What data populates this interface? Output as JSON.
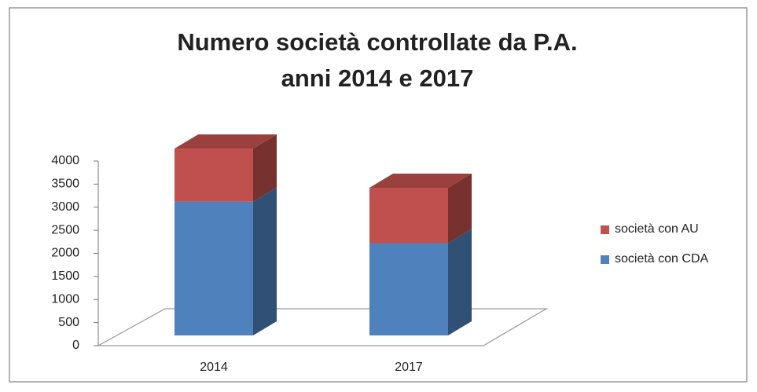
{
  "chart_data": {
    "type": "bar3d_stacked",
    "title": [
      "Numero società controllate da P.A.",
      "anni 2014 e 2017"
    ],
    "categories": [
      "2014",
      "2017"
    ],
    "series": [
      {
        "name": "società con CDA",
        "color": "#4f81bd",
        "values": [
          2900,
          2000
        ]
      },
      {
        "name": "società con AU",
        "color": "#c0504d",
        "values": [
          1150,
          1200
        ]
      }
    ],
    "ylim": [
      0,
      4000
    ],
    "yticks": [
      0,
      500,
      1000,
      1500,
      2000,
      2500,
      3000,
      3500,
      4000
    ],
    "legend": "right"
  }
}
